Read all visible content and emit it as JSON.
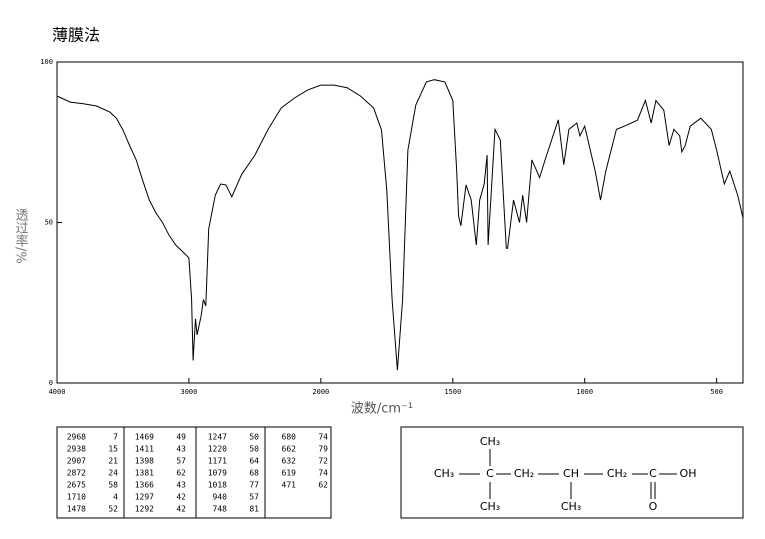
{
  "chart_data": {
    "type": "line",
    "title": "薄膜法",
    "ylabel": "透过率/%",
    "xlabel": "波数/cm⁻¹",
    "x_scale_break": 2000,
    "xlim": [
      4000,
      400
    ],
    "xticks": [
      4000,
      3000,
      2000,
      1500,
      1000,
      500
    ],
    "ylim": [
      0,
      100
    ],
    "yticks": [
      0,
      50,
      100
    ],
    "x": [
      4000,
      3900,
      3800,
      3700,
      3600,
      3550,
      3500,
      3450,
      3400,
      3350,
      3300,
      3250,
      3200,
      3150,
      3100,
      3050,
      3000,
      2980,
      2968,
      2950,
      2938,
      2907,
      2890,
      2872,
      2850,
      2800,
      2760,
      2720,
      2675,
      2600,
      2500,
      2400,
      2300,
      2200,
      2100,
      2000,
      1950,
      1900,
      1850,
      1800,
      1770,
      1750,
      1730,
      1710,
      1690,
      1670,
      1640,
      1600,
      1570,
      1530,
      1500,
      1485,
      1478,
      1469,
      1450,
      1430,
      1411,
      1398,
      1381,
      1370,
      1366,
      1340,
      1320,
      1297,
      1292,
      1270,
      1247,
      1235,
      1220,
      1200,
      1171,
      1150,
      1120,
      1100,
      1079,
      1060,
      1030,
      1018,
      1000,
      960,
      940,
      920,
      880,
      850,
      800,
      770,
      748,
      730,
      700,
      680,
      662,
      640,
      632,
      619,
      600,
      560,
      520,
      500,
      471,
      450,
      420,
      400
    ],
    "series": [
      {
        "name": "spectrum",
        "color": "#000000",
        "values": [
          89.4,
          87.5,
          87,
          86.3,
          84.4,
          82.5,
          78.8,
          74,
          69.5,
          63,
          57,
          53,
          50,
          46,
          43,
          41,
          39,
          26,
          7,
          20,
          15,
          21,
          26,
          24,
          48,
          58.5,
          62,
          61.7,
          58,
          65,
          71,
          79,
          85.7,
          88.8,
          91.3,
          92.8,
          92.8,
          92,
          89.4,
          85.7,
          78.8,
          60,
          26,
          4,
          26,
          72.6,
          86.6,
          93.8,
          94.5,
          93.8,
          88,
          66,
          52,
          49,
          61.7,
          57,
          43,
          57,
          62,
          71,
          43,
          79,
          75.7,
          42,
          42,
          57,
          50,
          58.5,
          50,
          69.5,
          64,
          69.5,
          77,
          82,
          68,
          79,
          81,
          77,
          80,
          66,
          57,
          66,
          79,
          80,
          81.9,
          88,
          81,
          88,
          85,
          74,
          79,
          77,
          72,
          74,
          80,
          82.5,
          79,
          72.6,
          62,
          66,
          58.5,
          51.4
        ]
      }
    ]
  },
  "peak_table": {
    "columns": [
      [
        [
          "2968",
          "7"
        ],
        [
          "2938",
          "15"
        ],
        [
          "2907",
          "21"
        ],
        [
          "2872",
          "24"
        ],
        [
          "2675",
          "58"
        ],
        [
          "1710",
          "4"
        ],
        [
          "1478",
          "52"
        ]
      ],
      [
        [
          "1469",
          "49"
        ],
        [
          "1411",
          "43"
        ],
        [
          "1398",
          "57"
        ],
        [
          "1381",
          "62"
        ],
        [
          "1366",
          "43"
        ],
        [
          "1297",
          "42"
        ],
        [
          "1292",
          "42"
        ]
      ],
      [
        [
          "1247",
          "50"
        ],
        [
          "1220",
          "50"
        ],
        [
          "1171",
          "64"
        ],
        [
          "1079",
          "68"
        ],
        [
          "1018",
          "77"
        ],
        [
          "940",
          "57"
        ],
        [
          "748",
          "81"
        ]
      ],
      [
        [
          "680",
          "74"
        ],
        [
          "662",
          "79"
        ],
        [
          "632",
          "72"
        ],
        [
          "619",
          "74"
        ],
        [
          "471",
          "62"
        ]
      ]
    ]
  },
  "structure": {
    "labels": [
      "CH₃",
      "CH₃",
      "C",
      "CH₂",
      "CH",
      "CH₂",
      "C",
      "OH",
      "CH₃",
      "CH₃",
      "O"
    ]
  }
}
